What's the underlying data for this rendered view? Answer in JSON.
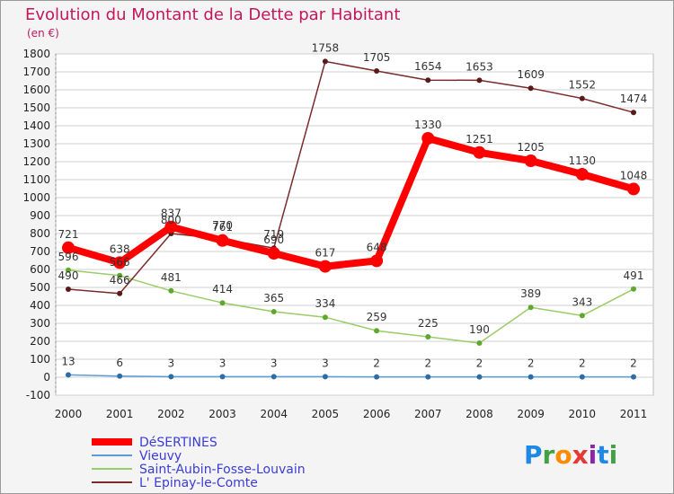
{
  "chart_data": {
    "type": "line",
    "title": "Evolution du Montant de la Dette par Habitant",
    "subtitle": "(en €)",
    "x": [
      "2000",
      "2001",
      "2002",
      "2003",
      "2004",
      "2005",
      "2006",
      "2007",
      "2008",
      "2009",
      "2010",
      "2011"
    ],
    "ylim": [
      -100,
      1800
    ],
    "yticks": [
      -100,
      0,
      100,
      200,
      300,
      400,
      500,
      600,
      700,
      800,
      900,
      1000,
      1100,
      1200,
      1300,
      1400,
      1500,
      1600,
      1700,
      1800
    ],
    "grid": "horizontal",
    "legend_position": "bottom-left",
    "series": [
      {
        "name": "DéSERTINES",
        "color": "#ff0000",
        "values": [
          721,
          638,
          837,
          761,
          690,
          617,
          648,
          1330,
          1251,
          1205,
          1130,
          1048
        ]
      },
      {
        "name": "Vieuvy",
        "color": "#5b9bd5",
        "values": [
          13,
          6,
          3,
          3,
          3,
          3,
          2,
          2,
          2,
          2,
          2,
          2
        ]
      },
      {
        "name": "Saint-Aubin-Fosse-Louvain",
        "color": "#99cc66",
        "values": [
          596,
          566,
          481,
          414,
          365,
          334,
          259,
          225,
          190,
          389,
          343,
          491
        ]
      },
      {
        "name": "L' Epinay-le-Comte",
        "color": "#7b2b2b",
        "values": [
          490,
          466,
          800,
          770,
          719,
          1758,
          1705,
          1654,
          1653,
          1609,
          1552,
          1474
        ]
      }
    ]
  },
  "logo": {
    "text": "Proxiti"
  }
}
